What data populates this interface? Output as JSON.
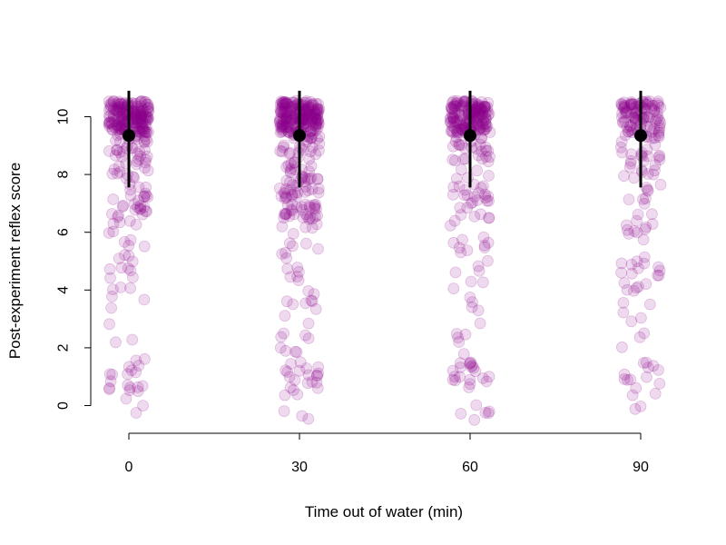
{
  "chart_data": {
    "type": "scatter",
    "title": "",
    "xlabel": "Time out of water (min)",
    "ylabel": "Post-experiment reflex score",
    "x_categories": [
      "0",
      "30",
      "60",
      "90"
    ],
    "y_ticks": [
      "0",
      "2",
      "4",
      "6",
      "8",
      "10"
    ],
    "ylim": [
      -0.9,
      10.9
    ],
    "grid": false,
    "legend": "none",
    "series": [
      {
        "kind": "jittered_points",
        "color": "#8B008B",
        "opacity": 0.15,
        "groups": [
          {
            "x": "0",
            "bands": [
              {
                "value": 10,
                "count": 180
              },
              {
                "value": 9,
                "count": 35
              },
              {
                "value": 8,
                "count": 18
              },
              {
                "value": 7,
                "count": 24
              },
              {
                "value": 6,
                "count": 10
              },
              {
                "value": 5,
                "count": 8
              },
              {
                "value": 4,
                "count": 7
              },
              {
                "value": 3,
                "count": 2
              },
              {
                "value": 2,
                "count": 4
              },
              {
                "value": 1,
                "count": 16
              },
              {
                "value": 0,
                "count": 3
              }
            ]
          },
          {
            "x": "30",
            "bands": [
              {
                "value": 10,
                "count": 200
              },
              {
                "value": 9,
                "count": 30
              },
              {
                "value": 8,
                "count": 30
              },
              {
                "value": 7,
                "count": 45
              },
              {
                "value": 6,
                "count": 10
              },
              {
                "value": 5,
                "count": 7
              },
              {
                "value": 4,
                "count": 10
              },
              {
                "value": 3,
                "count": 4
              },
              {
                "value": 2,
                "count": 8
              },
              {
                "value": 1,
                "count": 18
              },
              {
                "value": 0,
                "count": 5
              }
            ]
          },
          {
            "x": "60",
            "bands": [
              {
                "value": 10,
                "count": 160
              },
              {
                "value": 9,
                "count": 28
              },
              {
                "value": 8,
                "count": 12
              },
              {
                "value": 7,
                "count": 20
              },
              {
                "value": 6,
                "count": 8
              },
              {
                "value": 5,
                "count": 8
              },
              {
                "value": 4,
                "count": 5
              },
              {
                "value": 3,
                "count": 3
              },
              {
                "value": 2,
                "count": 5
              },
              {
                "value": 1,
                "count": 20
              },
              {
                "value": 0,
                "count": 6
              }
            ]
          },
          {
            "x": "90",
            "bands": [
              {
                "value": 10,
                "count": 90
              },
              {
                "value": 9,
                "count": 25
              },
              {
                "value": 8,
                "count": 14
              },
              {
                "value": 7,
                "count": 8
              },
              {
                "value": 6,
                "count": 10
              },
              {
                "value": 5,
                "count": 12
              },
              {
                "value": 4,
                "count": 8
              },
              {
                "value": 3,
                "count": 4
              },
              {
                "value": 2,
                "count": 2
              },
              {
                "value": 1,
                "count": 12
              },
              {
                "value": 0,
                "count": 4
              }
            ]
          }
        ]
      },
      {
        "kind": "mean_with_interval",
        "color": "#000000",
        "points": [
          {
            "x": "0",
            "mean": 9.35,
            "lower": 7.55,
            "upper": 10.9
          },
          {
            "x": "30",
            "mean": 9.35,
            "lower": 7.55,
            "upper": 10.9
          },
          {
            "x": "60",
            "mean": 9.35,
            "lower": 7.55,
            "upper": 10.9
          },
          {
            "x": "90",
            "mean": 9.35,
            "lower": 7.55,
            "upper": 10.9
          }
        ]
      }
    ]
  }
}
